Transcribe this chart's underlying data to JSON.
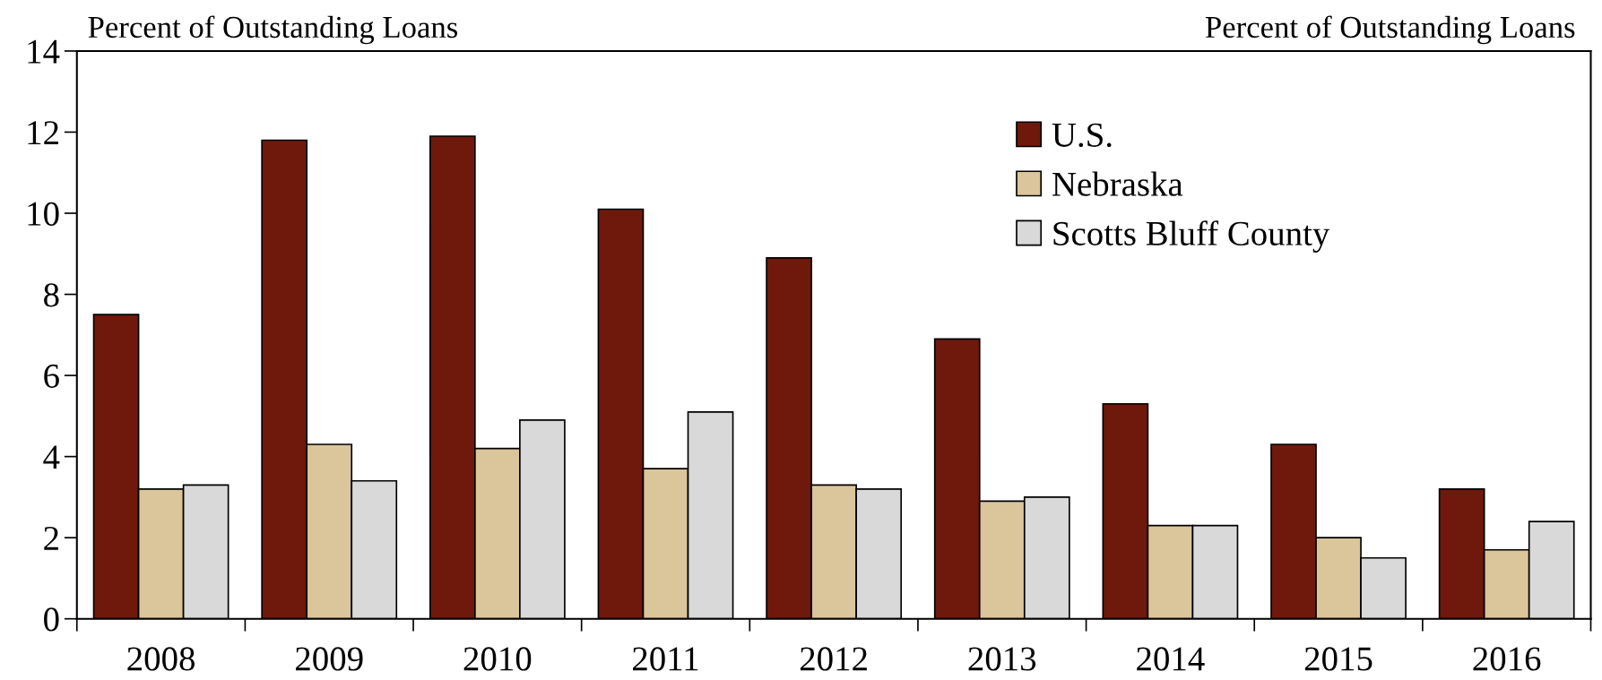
{
  "chart_data": {
    "type": "bar",
    "ylabel": "Percent of Outstanding Loans",
    "y2label": "Percent of Outstanding Loans",
    "categories": [
      "2008",
      "2009",
      "2010",
      "2011",
      "2012",
      "2013",
      "2014",
      "2015",
      "2016"
    ],
    "series": [
      {
        "name": "U.S.",
        "color": "#6e190c",
        "values": [
          7.5,
          11.8,
          11.9,
          10.1,
          8.9,
          6.9,
          5.3,
          4.3,
          3.2
        ]
      },
      {
        "name": "Nebraska",
        "color": "#dbc59a",
        "values": [
          3.2,
          4.3,
          4.2,
          3.7,
          3.3,
          2.9,
          2.3,
          2.0,
          1.7
        ]
      },
      {
        "name": "Scotts Bluff County",
        "color": "#d9d9d9",
        "values": [
          3.3,
          3.4,
          4.9,
          5.1,
          3.2,
          3.0,
          2.3,
          1.5,
          2.4
        ]
      }
    ],
    "ylim": [
      0,
      14
    ],
    "yticks": [
      0,
      2,
      4,
      6,
      8,
      10,
      12,
      14
    ],
    "grid": false,
    "legend": "top right"
  }
}
